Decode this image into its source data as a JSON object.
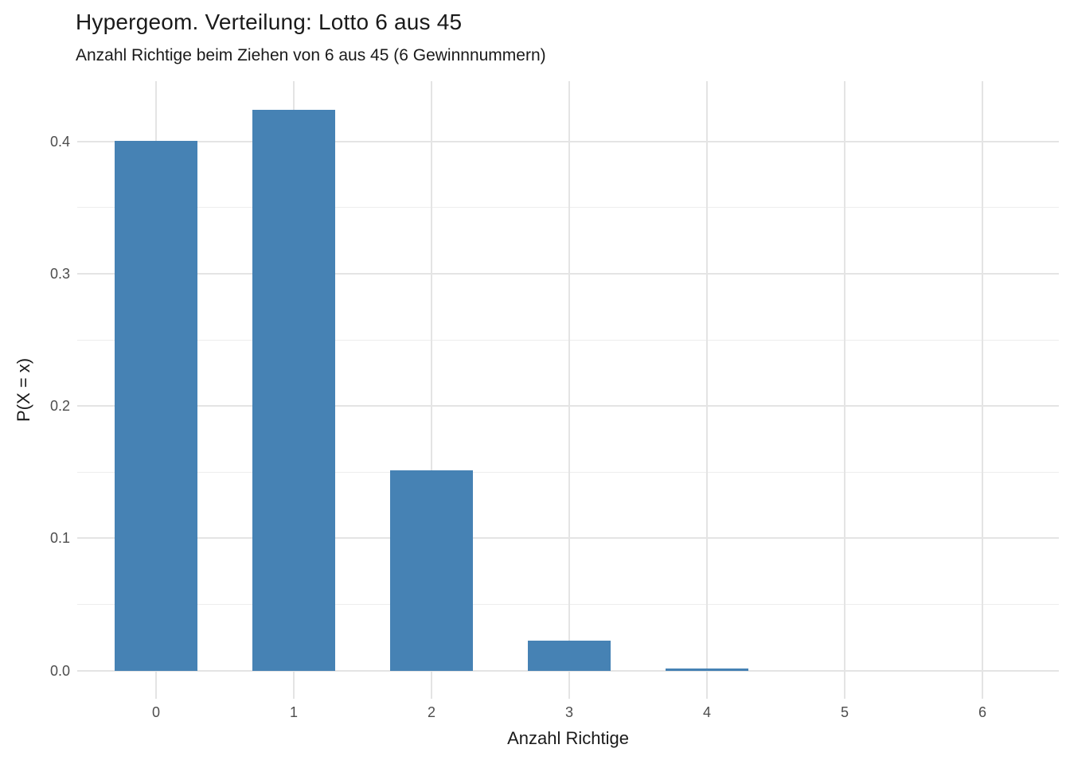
{
  "chart": {
    "title": "Hypergeom. Verteilung: Lotto 6 aus 45",
    "subtitle": "Anzahl Richtige beim Ziehen von 6 aus 45 (6 Gewinnnummern)",
    "xlabel": "Anzahl Richtige",
    "ylabel": "P(X = x)"
  },
  "chart_data": {
    "type": "bar",
    "title": "Hypergeom. Verteilung: Lotto 6 aus 45",
    "subtitle": "Anzahl Richtige beim Ziehen von 6 aus 45 (6 Gewinnnummern)",
    "xlabel": "Anzahl Richtige",
    "ylabel": "P(X = x)",
    "categories": [
      0,
      1,
      2,
      3,
      4,
      5,
      6
    ],
    "x_tick_labels": [
      "0",
      "1",
      "2",
      "3",
      "4",
      "5",
      "6"
    ],
    "values": [
      0.4005645,
      0.4241292,
      0.1514747,
      0.0224407,
      0.0013646,
      2.87e-05,
      1e-07
    ],
    "y_ticks": [
      0.0,
      0.1,
      0.2,
      0.3,
      0.4
    ],
    "y_tick_labels": [
      "0.0",
      "0.1",
      "0.2",
      "0.3",
      "0.4"
    ],
    "y_minor_ticks": [
      0.05,
      0.15,
      0.25,
      0.35
    ],
    "ylim": [
      -0.0212,
      0.4455
    ],
    "xlim": [
      -0.63,
      6.63
    ],
    "bar_width_fraction": 0.6,
    "bar_color": "#4682B4",
    "background_color": "#FFFFFF",
    "grid_major_color": "#E4E4E4",
    "grid_minor_color": "#EDEDED",
    "tick_label_color": "#4D4D4D",
    "text_color": "#1A1A1A",
    "grid": "y major + y minor + x major (no x minor)",
    "legend": "none"
  }
}
